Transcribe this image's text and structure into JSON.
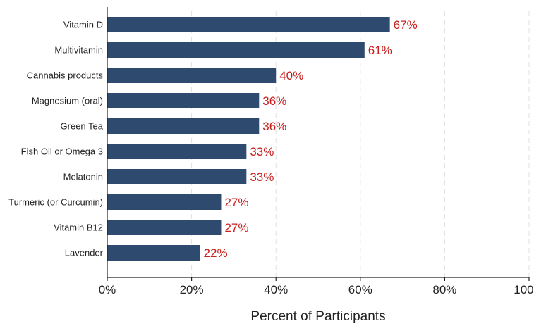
{
  "chart_data": {
    "type": "bar",
    "orientation": "horizontal",
    "categories": [
      "Vitamin D",
      "Multivitamin",
      "Cannabis products",
      "Magnesium (oral)",
      "Green Tea",
      "Fish Oil or Omega 3",
      "Melatonin",
      "Turmeric (or Curcumin)",
      "Vitamin B12",
      "Lavender"
    ],
    "values": [
      67,
      61,
      40,
      36,
      36,
      33,
      33,
      27,
      27,
      22
    ],
    "value_labels": [
      "67%",
      "61%",
      "40%",
      "36%",
      "36%",
      "33%",
      "33%",
      "27%",
      "27%",
      "22%"
    ],
    "title": "",
    "xlabel": "Percent of Participants",
    "ylabel": "",
    "xlim": [
      0,
      100
    ],
    "x_ticks": [
      0,
      20,
      40,
      60,
      80,
      100
    ],
    "x_tick_labels": [
      "0%",
      "20%",
      "40%",
      "60%",
      "80%",
      "100%"
    ],
    "grid": "vertical dashed",
    "legend": "none",
    "colors": {
      "bar": "#2e4a6e",
      "value_label": "#c8201e",
      "grid": "#e0e0e0",
      "axis": "#222222"
    }
  }
}
